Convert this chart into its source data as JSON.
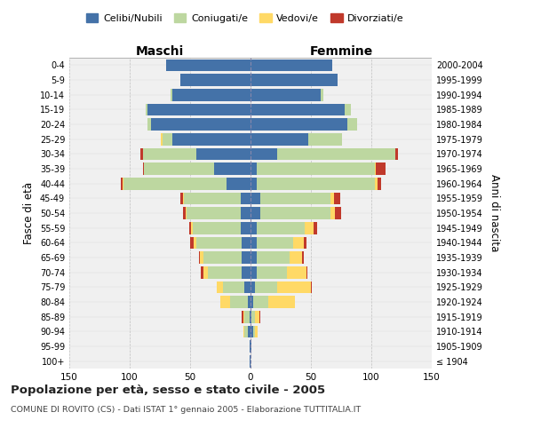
{
  "age_groups": [
    "100+",
    "95-99",
    "90-94",
    "85-89",
    "80-84",
    "75-79",
    "70-74",
    "65-69",
    "60-64",
    "55-59",
    "50-54",
    "45-49",
    "40-44",
    "35-39",
    "30-34",
    "25-29",
    "20-24",
    "15-19",
    "10-14",
    "5-9",
    "0-4"
  ],
  "year_labels": [
    "≤ 1904",
    "1905-1909",
    "1910-1914",
    "1915-1919",
    "1920-1924",
    "1925-1929",
    "1930-1934",
    "1935-1939",
    "1940-1944",
    "1945-1949",
    "1950-1954",
    "1955-1959",
    "1960-1964",
    "1965-1969",
    "1970-1974",
    "1975-1979",
    "1980-1984",
    "1985-1989",
    "1990-1994",
    "1995-1999",
    "2000-2004"
  ],
  "maschi": {
    "celibe": [
      1,
      1,
      2,
      1,
      2,
      5,
      7,
      7,
      7,
      8,
      8,
      8,
      20,
      30,
      45,
      65,
      82,
      85,
      65,
      58,
      70
    ],
    "coniugato": [
      0,
      0,
      3,
      4,
      15,
      18,
      28,
      32,
      38,
      40,
      45,
      47,
      85,
      58,
      44,
      8,
      3,
      2,
      1,
      0,
      0
    ],
    "vedovo": [
      0,
      0,
      1,
      1,
      8,
      5,
      4,
      3,
      2,
      1,
      1,
      1,
      1,
      0,
      0,
      1,
      0,
      0,
      0,
      0,
      0
    ],
    "divorziato": [
      0,
      0,
      0,
      1,
      0,
      0,
      2,
      1,
      3,
      2,
      2,
      2,
      1,
      1,
      2,
      0,
      0,
      0,
      0,
      0,
      0
    ]
  },
  "femmine": {
    "nubile": [
      0,
      1,
      2,
      1,
      2,
      4,
      5,
      5,
      5,
      5,
      8,
      8,
      5,
      5,
      22,
      48,
      80,
      78,
      58,
      72,
      68
    ],
    "coniugata": [
      0,
      0,
      2,
      3,
      13,
      18,
      25,
      27,
      30,
      40,
      58,
      58,
      98,
      98,
      98,
      28,
      8,
      5,
      2,
      0,
      0
    ],
    "vedova": [
      0,
      0,
      2,
      3,
      22,
      28,
      16,
      11,
      9,
      7,
      4,
      3,
      2,
      1,
      0,
      0,
      0,
      0,
      0,
      0,
      0
    ],
    "divorziata": [
      0,
      0,
      0,
      1,
      0,
      1,
      1,
      1,
      2,
      3,
      5,
      5,
      3,
      8,
      2,
      0,
      0,
      0,
      0,
      0,
      0
    ]
  },
  "colors": {
    "celibe": "#4472A8",
    "coniugato": "#BDD7A0",
    "vedovo": "#FFD966",
    "divorziato": "#C0392B"
  },
  "xlim": 150,
  "title": "Popolazione per età, sesso e stato civile - 2005",
  "subtitle": "COMUNE DI ROVITO (CS) - Dati ISTAT 1° gennaio 2005 - Elaborazione TUTTITALIA.IT",
  "ylabel_left": "Fasce di età",
  "ylabel_right": "Anni di nascita",
  "legend_labels": [
    "Celibi/Nubili",
    "Coniugati/e",
    "Vedovi/e",
    "Divorziati/e"
  ],
  "bg_color": "#ffffff",
  "plot_bg": "#f0f0f0",
  "grid_color": "#cccccc"
}
